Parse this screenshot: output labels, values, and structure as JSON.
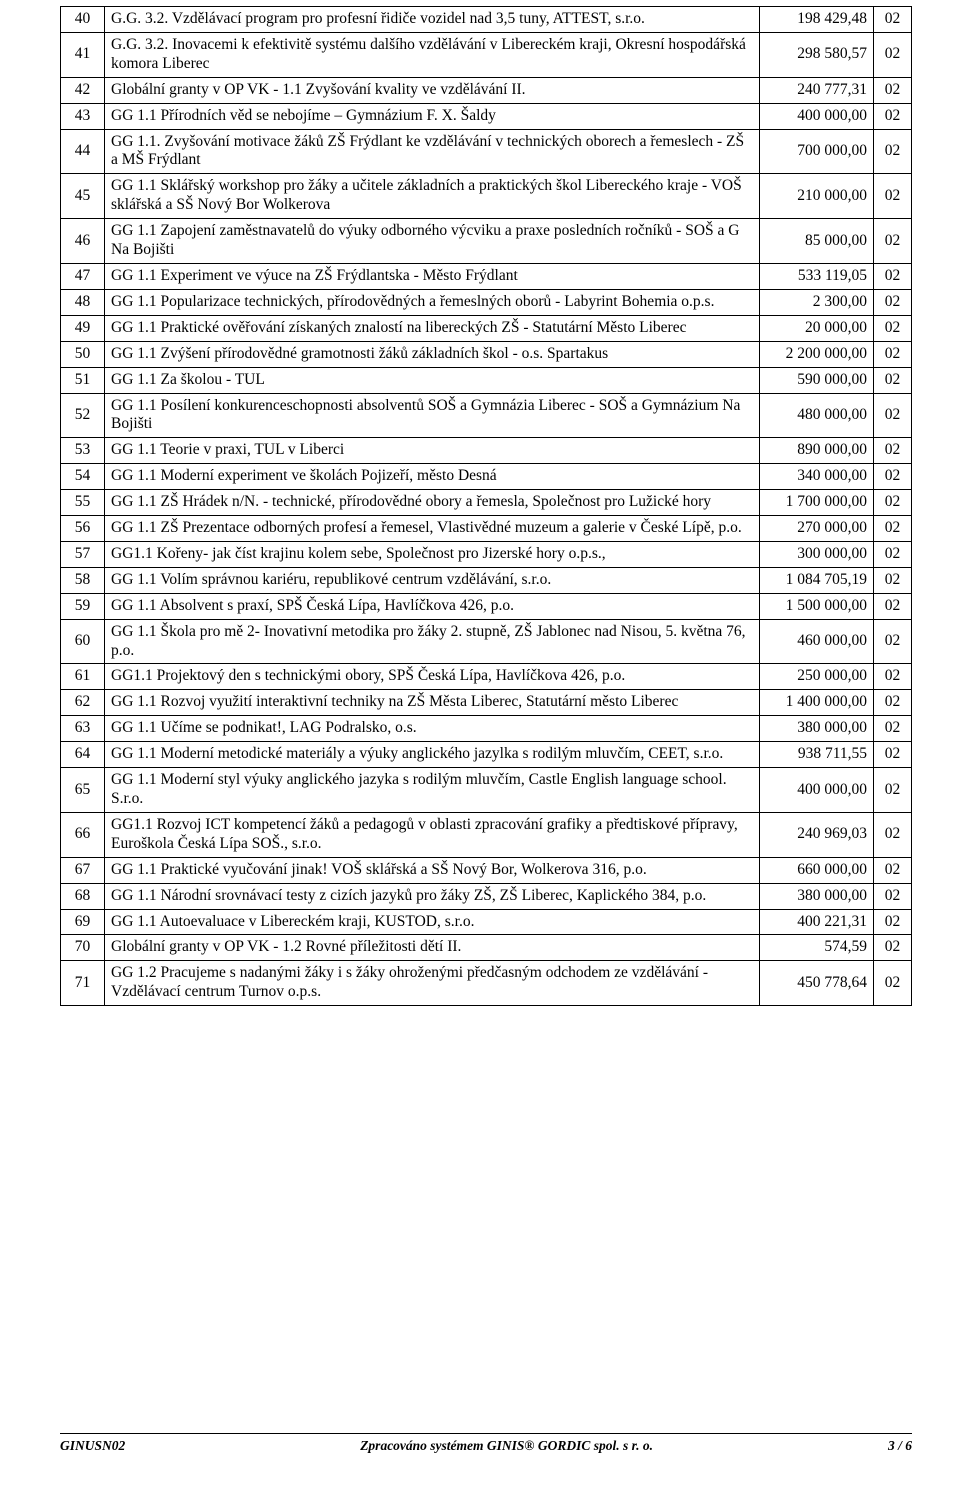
{
  "rows": [
    {
      "n": "40",
      "d": "G.G. 3.2. Vzdělávací program pro profesní řidiče vozidel nad 3,5 tuny, ATTEST, s.r.o.",
      "a": "198 429,48",
      "c": "02"
    },
    {
      "n": "41",
      "d": "G.G. 3.2. Inovacemi k efektivitě systému dalšího vzdělávání v Libereckém kraji, Okresní hospodářská komora Liberec",
      "a": "298 580,57",
      "c": "02"
    },
    {
      "n": "42",
      "d": "Globální granty v OP VK - 1.1 Zvyšování kvality ve vzdělávání  II.",
      "a": "240 777,31",
      "c": "02"
    },
    {
      "n": "43",
      "d": "GG 1.1 Přírodních věd se nebojíme – Gymnázium  F. X. Šaldy",
      "a": "400 000,00",
      "c": "02"
    },
    {
      "n": "44",
      "d": "GG 1.1. Zvyšování motivace žáků ZŠ Frýdlant ke vzdělávání v technických oborech a řemeslech - ZŠ a MŠ Frýdlant",
      "a": "700 000,00",
      "c": "02"
    },
    {
      "n": "45",
      "d": "GG 1.1 Sklářský workshop pro žáky a učitele základních a praktických škol Libereckého kraje - VOŠ sklářská a SŠ Nový Bor Wolkerova",
      "a": "210 000,00",
      "c": "02"
    },
    {
      "n": "46",
      "d": "GG 1.1 Zapojení zaměstnavatelů do výuky odborného výcviku a praxe posledních ročníků  - SOŠ a G Na Bojišti",
      "a": "85 000,00",
      "c": "02"
    },
    {
      "n": "47",
      "d": "GG 1.1 Experiment ve výuce na ZŠ Frýdlantska - Město Frýdlant",
      "a": "533 119,05",
      "c": "02"
    },
    {
      "n": "48",
      "d": "GG 1.1 Popularizace technických, přírodovědných a řemeslných oborů - Labyrint Bohemia o.p.s.",
      "a": "2 300,00",
      "c": "02"
    },
    {
      "n": "49",
      "d": "GG 1.1 Praktické ověřování získaných znalostí na libereckých ZŠ - Statutární Město Liberec",
      "a": "20 000,00",
      "c": "02"
    },
    {
      "n": "50",
      "d": "GG 1.1 Zvýšení přírodovědné gramotnosti žáků základních škol - o.s. Spartakus",
      "a": "2 200 000,00",
      "c": "02"
    },
    {
      "n": "51",
      "d": "GG 1.1 Za školou - TUL",
      "a": "590 000,00",
      "c": "02"
    },
    {
      "n": "52",
      "d": "GG 1.1 Posílení konkurenceschopnosti absolventů SOŠ a Gymnázia Liberec - SOŠ a Gymnázium Na Bojišti",
      "a": "480 000,00",
      "c": "02"
    },
    {
      "n": "53",
      "d": "GG 1.1 Teorie v praxi, TUL v Liberci",
      "a": "890 000,00",
      "c": "02"
    },
    {
      "n": "54",
      "d": "GG 1.1 Moderní experiment ve školách Pojizeří, město Desná",
      "a": "340 000,00",
      "c": "02"
    },
    {
      "n": "55",
      "d": "GG 1.1 ZŠ Hrádek n/N. - technické, přírodovědné obory a řemesla, Společnost pro Lužické hory",
      "a": "1 700 000,00",
      "c": "02"
    },
    {
      "n": "56",
      "d": "GG 1.1 ZŠ Prezentace odborných profesí a řemesel, Vlastivědné muzeum a galerie v České Lípě, p.o.",
      "a": "270 000,00",
      "c": "02"
    },
    {
      "n": "57",
      "d": "GG1.1 Kořeny- jak číst krajinu kolem sebe, Společnost pro Jizerské hory o.p.s.,",
      "a": "300 000,00",
      "c": "02"
    },
    {
      "n": "58",
      "d": "GG 1.1 Volím správnou kariéru, republikové centrum vzdělávání, s.r.o.",
      "a": "1 084 705,19",
      "c": "02"
    },
    {
      "n": "59",
      "d": "GG 1.1 Absolvent s praxí, SPŠ Česká Lípa, Havlíčkova 426, p.o.",
      "a": "1 500 000,00",
      "c": "02"
    },
    {
      "n": "60",
      "d": "GG 1.1 Škola pro mě 2- Inovativní metodika pro žáky 2. stupně, ZŠ Jablonec nad Nisou, 5. května 76, p.o.",
      "a": "460 000,00",
      "c": "02"
    },
    {
      "n": "61",
      "d": "GG1.1 Projektový den s technickými obory, SPŠ Česká Lípa, Havlíčkova 426, p.o.",
      "a": "250 000,00",
      "c": "02"
    },
    {
      "n": "62",
      "d": "GG 1.1 Rozvoj využití interaktivní techniky na ZŠ Města Liberec, Statutární město Liberec",
      "a": "1 400 000,00",
      "c": "02"
    },
    {
      "n": "63",
      "d": "GG 1.1 Učíme se podnikat!, LAG Podralsko, o.s.",
      "a": "380 000,00",
      "c": "02"
    },
    {
      "n": "64",
      "d": "GG 1.1 Moderní metodické materiály a výuky anglického jazylka s rodilým mluvčím, CEET, s.r.o.",
      "a": "938 711,55",
      "c": "02"
    },
    {
      "n": "65",
      "d": "GG 1.1 Moderní styl výuky anglického jazyka s rodilým mluvčím, Castle English language school. S.r.o.",
      "a": "400 000,00",
      "c": "02"
    },
    {
      "n": "66",
      "d": "GG1.1 Rozvoj ICT kompetencí žáků a pedagogů v oblasti zpracování grafiky a předtiskové přípravy, Euroškola Česká Lípa SOŠ., s.r.o.",
      "a": "240 969,03",
      "c": "02"
    },
    {
      "n": "67",
      "d": "GG 1.1 Praktické vyučování jinak! VOŠ sklářská a SŠ Nový Bor, Wolkerova 316, p.o.",
      "a": "660 000,00",
      "c": "02"
    },
    {
      "n": "68",
      "d": "GG 1.1 Národní srovnávací testy z cizích jazyků pro žáky ZŠ, ZŠ Liberec, Kaplického 384, p.o.",
      "a": "380 000,00",
      "c": "02"
    },
    {
      "n": "69",
      "d": "GG 1.1 Autoevaluace v Libereckém kraji, KUSTOD, s.r.o.",
      "a": "400 221,31",
      "c": "02"
    },
    {
      "n": "70",
      "d": "Globální granty v OP VK - 1.2 Rovné příležitosti dětí II.",
      "a": "574,59",
      "c": "02"
    },
    {
      "n": "71",
      "d": "GG 1.2 Pracujeme s nadanými žáky i s žáky ohroženými předčasným odchodem ze vzdělávání - Vzdělávací centrum Turnov o.p.s.",
      "a": "450 778,64",
      "c": "02"
    }
  ],
  "footer": {
    "left": "GINUSN02",
    "center": "Zpracováno systémem GINIS® GORDIC spol. s r. o.",
    "right": "3  /  6"
  }
}
